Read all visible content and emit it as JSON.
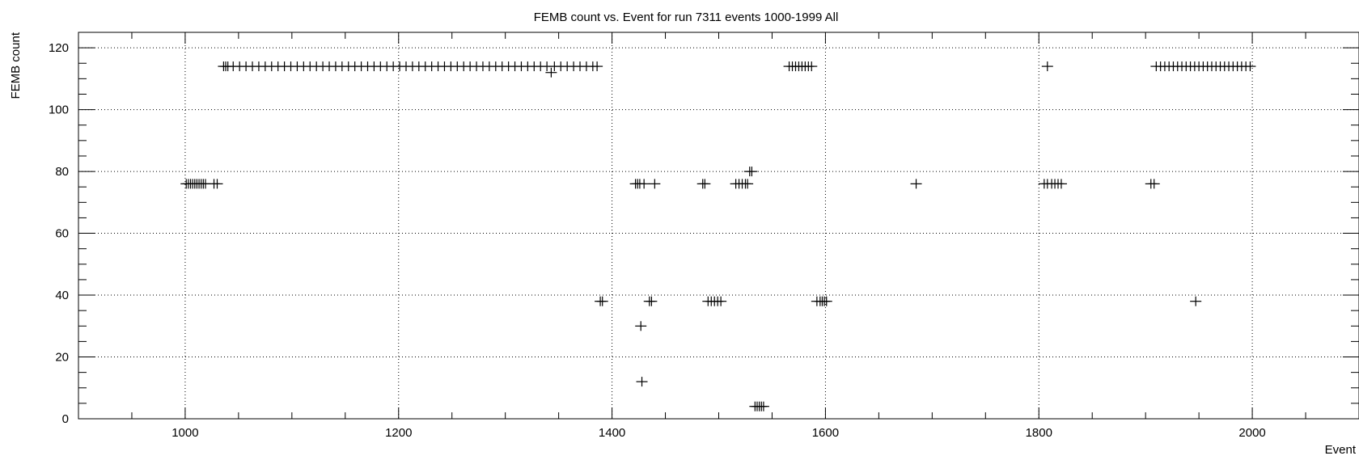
{
  "chart_data": {
    "type": "scatter",
    "title": "FEMB count vs. Event for run 7311 events 1000-1999 All",
    "xlabel": "Event",
    "ylabel": "FEMB count",
    "xlim": [
      900,
      2100
    ],
    "ylim": [
      0,
      125
    ],
    "x_ticks": [
      1000,
      1200,
      1400,
      1600,
      1800,
      2000
    ],
    "y_ticks": [
      0,
      20,
      40,
      60,
      80,
      100,
      120
    ],
    "x_tick_labels": [
      "1000",
      "1200",
      "1400",
      "1600",
      "1800",
      "2000"
    ],
    "y_tick_labels": [
      "0",
      "20",
      "40",
      "60",
      "80",
      "100",
      "120"
    ],
    "grid": true,
    "marker": "cross",
    "points": [
      [
        1001,
        76
      ],
      [
        1003,
        76
      ],
      [
        1005,
        76
      ],
      [
        1007,
        76
      ],
      [
        1009,
        76
      ],
      [
        1011,
        76
      ],
      [
        1013,
        76
      ],
      [
        1015,
        76
      ],
      [
        1017,
        76
      ],
      [
        1019,
        76
      ],
      [
        1027,
        76
      ],
      [
        1030,
        76
      ],
      [
        1036,
        114
      ],
      [
        1038,
        114
      ],
      [
        1040,
        114
      ],
      [
        1045,
        114
      ],
      [
        1051,
        114
      ],
      [
        1057,
        114
      ],
      [
        1063,
        114
      ],
      [
        1069,
        114
      ],
      [
        1075,
        114
      ],
      [
        1081,
        114
      ],
      [
        1087,
        114
      ],
      [
        1093,
        114
      ],
      [
        1099,
        114
      ],
      [
        1105,
        114
      ],
      [
        1111,
        114
      ],
      [
        1117,
        114
      ],
      [
        1123,
        114
      ],
      [
        1129,
        114
      ],
      [
        1135,
        114
      ],
      [
        1141,
        114
      ],
      [
        1147,
        114
      ],
      [
        1153,
        114
      ],
      [
        1159,
        114
      ],
      [
        1165,
        114
      ],
      [
        1171,
        114
      ],
      [
        1177,
        114
      ],
      [
        1183,
        114
      ],
      [
        1189,
        114
      ],
      [
        1195,
        114
      ],
      [
        1201,
        114
      ],
      [
        1207,
        114
      ],
      [
        1213,
        114
      ],
      [
        1219,
        114
      ],
      [
        1225,
        114
      ],
      [
        1231,
        114
      ],
      [
        1237,
        114
      ],
      [
        1243,
        114
      ],
      [
        1249,
        114
      ],
      [
        1255,
        114
      ],
      [
        1261,
        114
      ],
      [
        1267,
        114
      ],
      [
        1273,
        114
      ],
      [
        1279,
        114
      ],
      [
        1285,
        114
      ],
      [
        1291,
        114
      ],
      [
        1297,
        114
      ],
      [
        1303,
        114
      ],
      [
        1309,
        114
      ],
      [
        1315,
        114
      ],
      [
        1321,
        114
      ],
      [
        1327,
        114
      ],
      [
        1333,
        114
      ],
      [
        1339,
        114
      ],
      [
        1343,
        112
      ],
      [
        1346,
        114
      ],
      [
        1352,
        114
      ],
      [
        1358,
        114
      ],
      [
        1364,
        114
      ],
      [
        1370,
        114
      ],
      [
        1376,
        114
      ],
      [
        1382,
        114
      ],
      [
        1386,
        114
      ],
      [
        1389,
        38
      ],
      [
        1391,
        38
      ],
      [
        1422,
        76
      ],
      [
        1424,
        76
      ],
      [
        1426,
        76
      ],
      [
        1430,
        76
      ],
      [
        1440,
        76
      ],
      [
        1427,
        30
      ],
      [
        1428,
        12
      ],
      [
        1435,
        38
      ],
      [
        1437,
        38
      ],
      [
        1485,
        76
      ],
      [
        1487,
        76
      ],
      [
        1490,
        38
      ],
      [
        1493,
        38
      ],
      [
        1496,
        38
      ],
      [
        1499,
        38
      ],
      [
        1502,
        38
      ],
      [
        1516,
        76
      ],
      [
        1519,
        76
      ],
      [
        1522,
        76
      ],
      [
        1525,
        76
      ],
      [
        1527,
        76
      ],
      [
        1529,
        80
      ],
      [
        1531,
        80
      ],
      [
        1534,
        4
      ],
      [
        1536,
        4
      ],
      [
        1538,
        4
      ],
      [
        1540,
        4
      ],
      [
        1542,
        4
      ],
      [
        1566,
        114
      ],
      [
        1569,
        114
      ],
      [
        1572,
        114
      ],
      [
        1575,
        114
      ],
      [
        1578,
        114
      ],
      [
        1581,
        114
      ],
      [
        1584,
        114
      ],
      [
        1587,
        114
      ],
      [
        1592,
        38
      ],
      [
        1595,
        38
      ],
      [
        1597,
        38
      ],
      [
        1599,
        38
      ],
      [
        1601,
        38
      ],
      [
        1685,
        76
      ],
      [
        1805,
        76
      ],
      [
        1808,
        76
      ],
      [
        1812,
        76
      ],
      [
        1815,
        76
      ],
      [
        1818,
        76
      ],
      [
        1821,
        76
      ],
      [
        1808,
        114
      ],
      [
        1905,
        76
      ],
      [
        1908,
        76
      ],
      [
        1910,
        114
      ],
      [
        1914,
        114
      ],
      [
        1918,
        114
      ],
      [
        1922,
        114
      ],
      [
        1926,
        114
      ],
      [
        1930,
        114
      ],
      [
        1934,
        114
      ],
      [
        1938,
        114
      ],
      [
        1942,
        114
      ],
      [
        1946,
        114
      ],
      [
        1950,
        114
      ],
      [
        1954,
        114
      ],
      [
        1958,
        114
      ],
      [
        1962,
        114
      ],
      [
        1966,
        114
      ],
      [
        1970,
        114
      ],
      [
        1974,
        114
      ],
      [
        1978,
        114
      ],
      [
        1982,
        114
      ],
      [
        1986,
        114
      ],
      [
        1990,
        114
      ],
      [
        1994,
        114
      ],
      [
        1998,
        114
      ],
      [
        1947,
        38
      ]
    ]
  }
}
